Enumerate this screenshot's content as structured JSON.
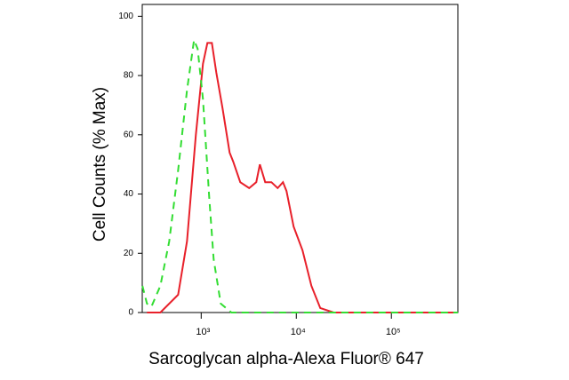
{
  "chart_data": {
    "type": "line",
    "x_label": "Sarcoglycan alpha-Alexa Fluor® 647",
    "y_label": "Cell Counts (% Max)",
    "log_x": true,
    "xlim": [
      240,
      500000
    ],
    "xticks": [
      {
        "value": 1000,
        "label": "10³"
      },
      {
        "value": 10000,
        "label": "10⁴"
      },
      {
        "value": 100000,
        "label": "10⁵"
      }
    ],
    "ylim": [
      0,
      104
    ],
    "yticks": [
      0,
      20,
      40,
      60,
      80,
      100
    ],
    "series": [
      {
        "color": "#e8202a",
        "dash": false,
        "x": [
          269,
          372,
          572,
          709,
          879,
          1044,
          1162,
          1295,
          1442,
          1676,
          1990,
          2168,
          2575,
          3196,
          3796,
          4139,
          4711,
          5474,
          6365,
          7244,
          7891,
          9374,
          11620,
          14420,
          17870,
          24710,
          500000
        ],
        "values": [
          0,
          0,
          6,
          24,
          60,
          84,
          91,
          91,
          81,
          69,
          54,
          51,
          44,
          42,
          44,
          50,
          44,
          44,
          42,
          44,
          41,
          29,
          21,
          9,
          1.5,
          0,
          0
        ]
      },
      {
        "color": "#33dd33",
        "dash": true,
        "x": [
          241,
          269,
          300,
          372,
          461,
          572,
          709,
          841,
          918,
          1044,
          1214,
          1352,
          1606,
          2080,
          500000
        ],
        "values": [
          9,
          3,
          2,
          9,
          24,
          48,
          75,
          92,
          89,
          72,
          39,
          18,
          3,
          0,
          0
        ]
      }
    ]
  }
}
